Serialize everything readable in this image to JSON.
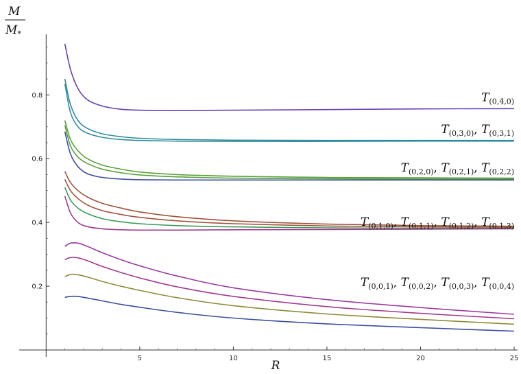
{
  "chart_data": {
    "type": "line",
    "title": "",
    "xlabel": "R",
    "ylabel": {
      "numerator": "M",
      "denominator": "M",
      "denominator_sub": "*"
    },
    "xlim": [
      -1,
      25
    ],
    "ylim": [
      0.0,
      0.99
    ],
    "x_ticks": [
      5,
      10,
      15,
      20,
      25
    ],
    "y_ticks": [
      0.2,
      0.4,
      0.6,
      0.8
    ],
    "x_tick_labels": [
      "5",
      "10",
      "15",
      "20",
      "25"
    ],
    "y_tick_labels": [
      "0.2",
      "0.4",
      "0.6",
      "0.8"
    ],
    "grid": false,
    "colors": {
      "purple": "#6a3fb0",
      "teal": "#2f8d9f",
      "green": "#5aa03a",
      "blue": "#3a4fa0",
      "brown": "#a0533a",
      "olive": "#8f8a3a",
      "magenta": "#a03a8f",
      "seagreen": "#3a9a5a",
      "violet": "#9a3aa0"
    },
    "series": [
      {
        "color": "#6a3fb0",
        "x": [
          1,
          1.3,
          1.7,
          2.2,
          3,
          4,
          5,
          7,
          10,
          15,
          20,
          25
        ],
        "y": [
          0.96,
          0.88,
          0.82,
          0.785,
          0.765,
          0.755,
          0.752,
          0.751,
          0.752,
          0.754,
          0.756,
          0.757
        ]
      },
      {
        "color": "#2f8d9f",
        "x": [
          1,
          1.3,
          1.7,
          2.2,
          3,
          4,
          5,
          7,
          10,
          15,
          20,
          25
        ],
        "y": [
          0.85,
          0.77,
          0.72,
          0.695,
          0.678,
          0.669,
          0.664,
          0.66,
          0.658,
          0.657,
          0.657,
          0.657
        ]
      },
      {
        "color": "#2f8d9f",
        "x": [
          1,
          1.3,
          1.7,
          2.2,
          3,
          4,
          5,
          7,
          10,
          15,
          20,
          25
        ],
        "y": [
          0.835,
          0.745,
          0.7,
          0.68,
          0.667,
          0.66,
          0.657,
          0.655,
          0.654,
          0.654,
          0.655,
          0.655
        ]
      },
      {
        "color": "#5aa03a",
        "x": [
          1,
          1.3,
          1.7,
          2.2,
          3,
          4,
          5,
          7,
          10,
          15,
          20,
          25
        ],
        "y": [
          0.72,
          0.66,
          0.625,
          0.6,
          0.58,
          0.567,
          0.558,
          0.55,
          0.545,
          0.541,
          0.54,
          0.539
        ]
      },
      {
        "color": "#5aa03a",
        "x": [
          1,
          1.3,
          1.7,
          2.2,
          3,
          4,
          5,
          7,
          10,
          15,
          20,
          25
        ],
        "y": [
          0.705,
          0.64,
          0.605,
          0.585,
          0.567,
          0.556,
          0.549,
          0.543,
          0.539,
          0.537,
          0.536,
          0.536
        ]
      },
      {
        "color": "#3a4fa0",
        "x": [
          1,
          1.3,
          1.7,
          2.2,
          3,
          4,
          5,
          7,
          10,
          15,
          20,
          25
        ],
        "y": [
          0.685,
          0.615,
          0.575,
          0.553,
          0.541,
          0.536,
          0.534,
          0.533,
          0.533,
          0.533,
          0.533,
          0.533
        ]
      },
      {
        "color": "#a0533a",
        "x": [
          1,
          1.3,
          1.7,
          2.2,
          3,
          4,
          5,
          7,
          10,
          15,
          20,
          25
        ],
        "y": [
          0.56,
          0.525,
          0.5,
          0.48,
          0.46,
          0.445,
          0.433,
          0.418,
          0.405,
          0.395,
          0.39,
          0.388
        ]
      },
      {
        "color": "#a0533a",
        "x": [
          1,
          1.3,
          1.7,
          2.2,
          3,
          4,
          5,
          7,
          10,
          15,
          20,
          25
        ],
        "y": [
          0.535,
          0.5,
          0.475,
          0.455,
          0.437,
          0.425,
          0.416,
          0.405,
          0.396,
          0.389,
          0.386,
          0.385
        ]
      },
      {
        "color": "#3a9a5a",
        "x": [
          1,
          1.3,
          1.7,
          2.2,
          3,
          4,
          5,
          7,
          10,
          15,
          20,
          25
        ],
        "y": [
          0.51,
          0.47,
          0.445,
          0.428,
          0.412,
          0.402,
          0.396,
          0.39,
          0.386,
          0.383,
          0.382,
          0.382
        ]
      },
      {
        "color": "#a03a8f",
        "x": [
          1,
          1.3,
          1.7,
          2.2,
          3,
          4,
          5,
          7,
          10,
          15,
          20,
          25
        ],
        "y": [
          0.483,
          0.43,
          0.4,
          0.387,
          0.38,
          0.377,
          0.376,
          0.376,
          0.377,
          0.378,
          0.379,
          0.38
        ]
      },
      {
        "color": "#9a3aa0",
        "x": [
          1,
          1.3,
          1.7,
          2.2,
          3,
          4,
          5,
          7,
          10,
          15,
          20,
          25
        ],
        "y": [
          0.325,
          0.335,
          0.335,
          0.325,
          0.305,
          0.283,
          0.264,
          0.232,
          0.195,
          0.158,
          0.133,
          0.112
        ]
      },
      {
        "color": "#a03a8f",
        "x": [
          1,
          1.3,
          1.7,
          2.2,
          3,
          4,
          5,
          7,
          10,
          15,
          20,
          25
        ],
        "y": [
          0.283,
          0.29,
          0.289,
          0.28,
          0.262,
          0.243,
          0.226,
          0.198,
          0.168,
          0.136,
          0.115,
          0.098
        ]
      },
      {
        "color": "#8f8a3a",
        "x": [
          1,
          1.3,
          1.7,
          2.2,
          3,
          4,
          5,
          7,
          10,
          15,
          20,
          25
        ],
        "y": [
          0.23,
          0.237,
          0.236,
          0.229,
          0.215,
          0.2,
          0.187,
          0.164,
          0.139,
          0.113,
          0.096,
          0.081
        ]
      },
      {
        "color": "#3a4fa0",
        "x": [
          1,
          1.3,
          1.7,
          2.2,
          3,
          4,
          5,
          7,
          10,
          15,
          20,
          25
        ],
        "y": [
          0.165,
          0.168,
          0.168,
          0.163,
          0.154,
          0.143,
          0.134,
          0.118,
          0.1,
          0.082,
          0.07,
          0.059
        ]
      }
    ],
    "annotations": [
      {
        "y": 0.78,
        "labels": [
          [
            "0,4,0"
          ]
        ]
      },
      {
        "y": 0.68,
        "labels": [
          [
            "0,3,0"
          ],
          [
            "0,3,1"
          ]
        ]
      },
      {
        "y": 0.56,
        "labels": [
          [
            "0,2,0"
          ],
          [
            "0,2,1"
          ],
          [
            "0,2,2"
          ]
        ]
      },
      {
        "y": 0.39,
        "labels": [
          [
            "0,1,0"
          ],
          [
            "0,1,1"
          ],
          [
            "0,1,2"
          ],
          [
            "0,1,3"
          ]
        ]
      },
      {
        "y": 0.2,
        "labels": [
          [
            "0,0,1"
          ],
          [
            "0,0,2"
          ],
          [
            "0,0,3"
          ],
          [
            "0,0,4"
          ]
        ]
      }
    ],
    "annotation_symbol": "T"
  }
}
